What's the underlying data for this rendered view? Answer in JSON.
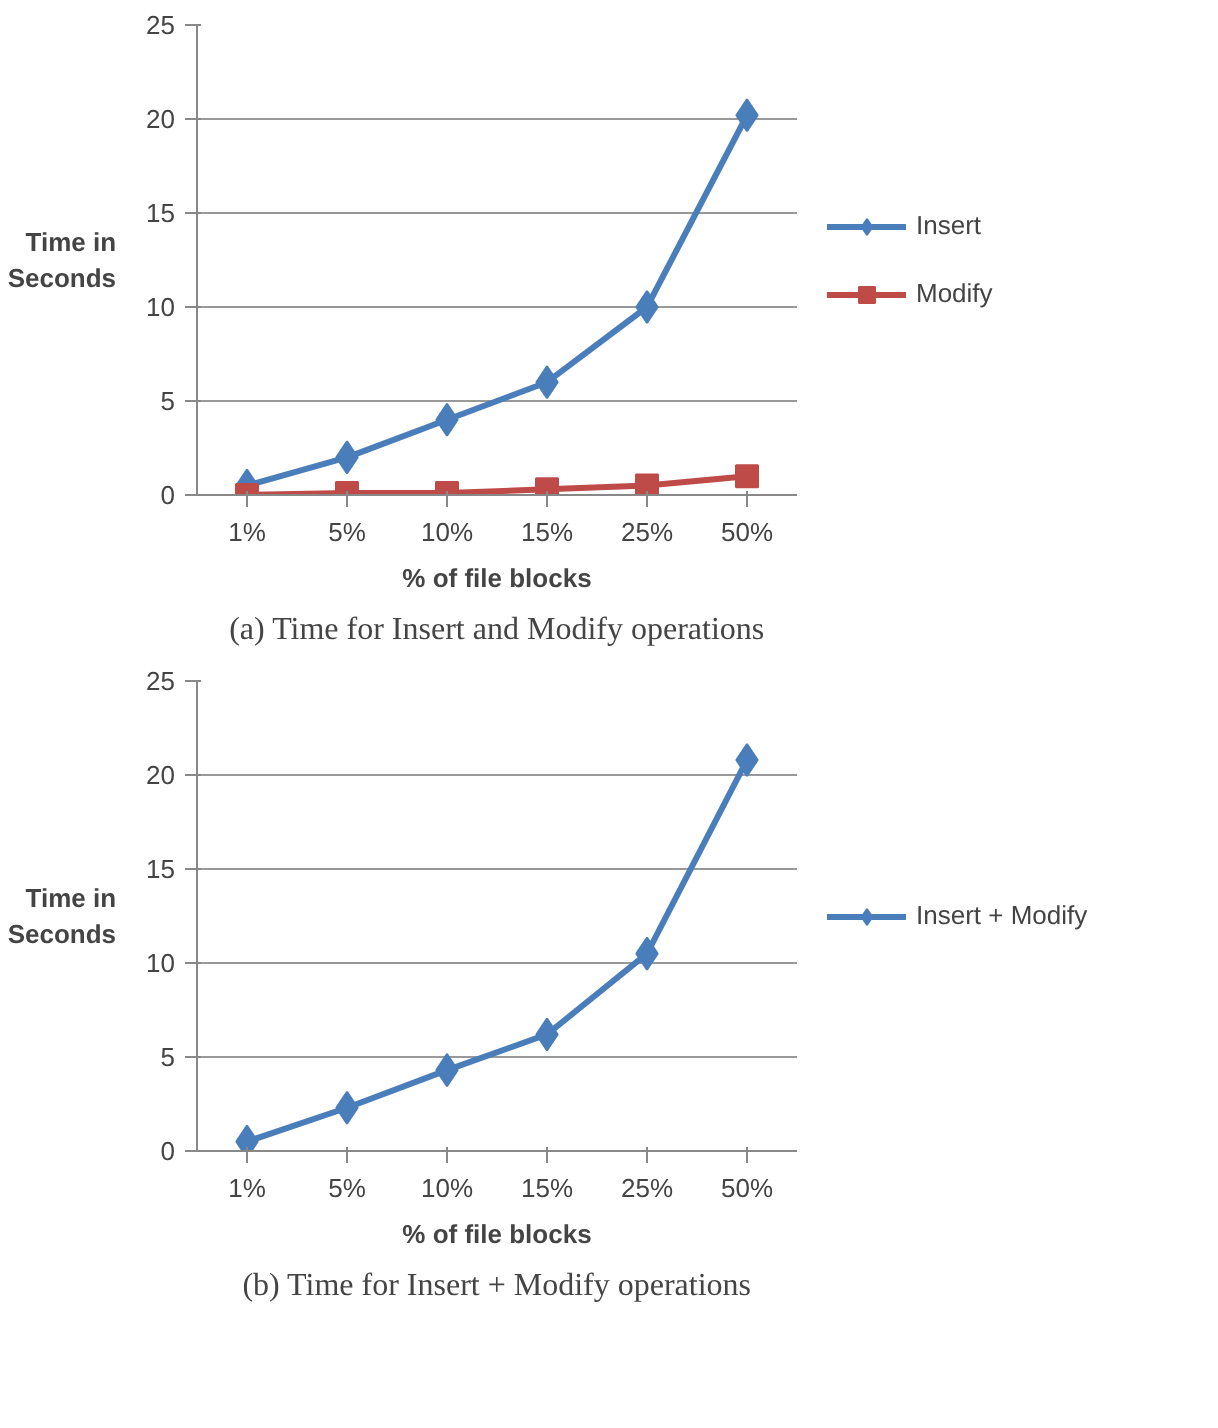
{
  "chart_data": [
    {
      "type": "line",
      "xlabel": "% of file blocks",
      "ylabel": "Time in Seconds",
      "categories": [
        "1%",
        "5%",
        "10%",
        "15%",
        "25%",
        "50%"
      ],
      "series": [
        {
          "name": "Insert",
          "color": "#4a7ebb",
          "marker": "diamond",
          "values": [
            0.5,
            2,
            4,
            6,
            10,
            20.2
          ]
        },
        {
          "name": "Modify",
          "color": "#be4b48",
          "marker": "square",
          "values": [
            0,
            0.1,
            0.1,
            0.3,
            0.5,
            1
          ]
        }
      ],
      "ylim": [
        0,
        25
      ],
      "yticks": [
        0,
        5,
        10,
        15,
        20,
        25
      ],
      "grid": "y",
      "legend": "right",
      "annotations": [
        "(a) Time for Insert and Modify operations"
      ]
    },
    {
      "type": "line",
      "xlabel": "% of file blocks",
      "ylabel": "Time in Seconds",
      "categories": [
        "1%",
        "5%",
        "10%",
        "15%",
        "25%",
        "50%"
      ],
      "series": [
        {
          "name": "Insert + Modify",
          "color": "#4a7ebb",
          "marker": "diamond",
          "values": [
            0.5,
            2.3,
            4.3,
            6.2,
            10.5,
            20.8
          ]
        }
      ],
      "ylim": [
        0,
        25
      ],
      "yticks": [
        0,
        5,
        10,
        15,
        20,
        25
      ],
      "grid": "y",
      "legend": "right",
      "annotations": [
        "(b) Time for Insert + Modify operations"
      ]
    }
  ]
}
